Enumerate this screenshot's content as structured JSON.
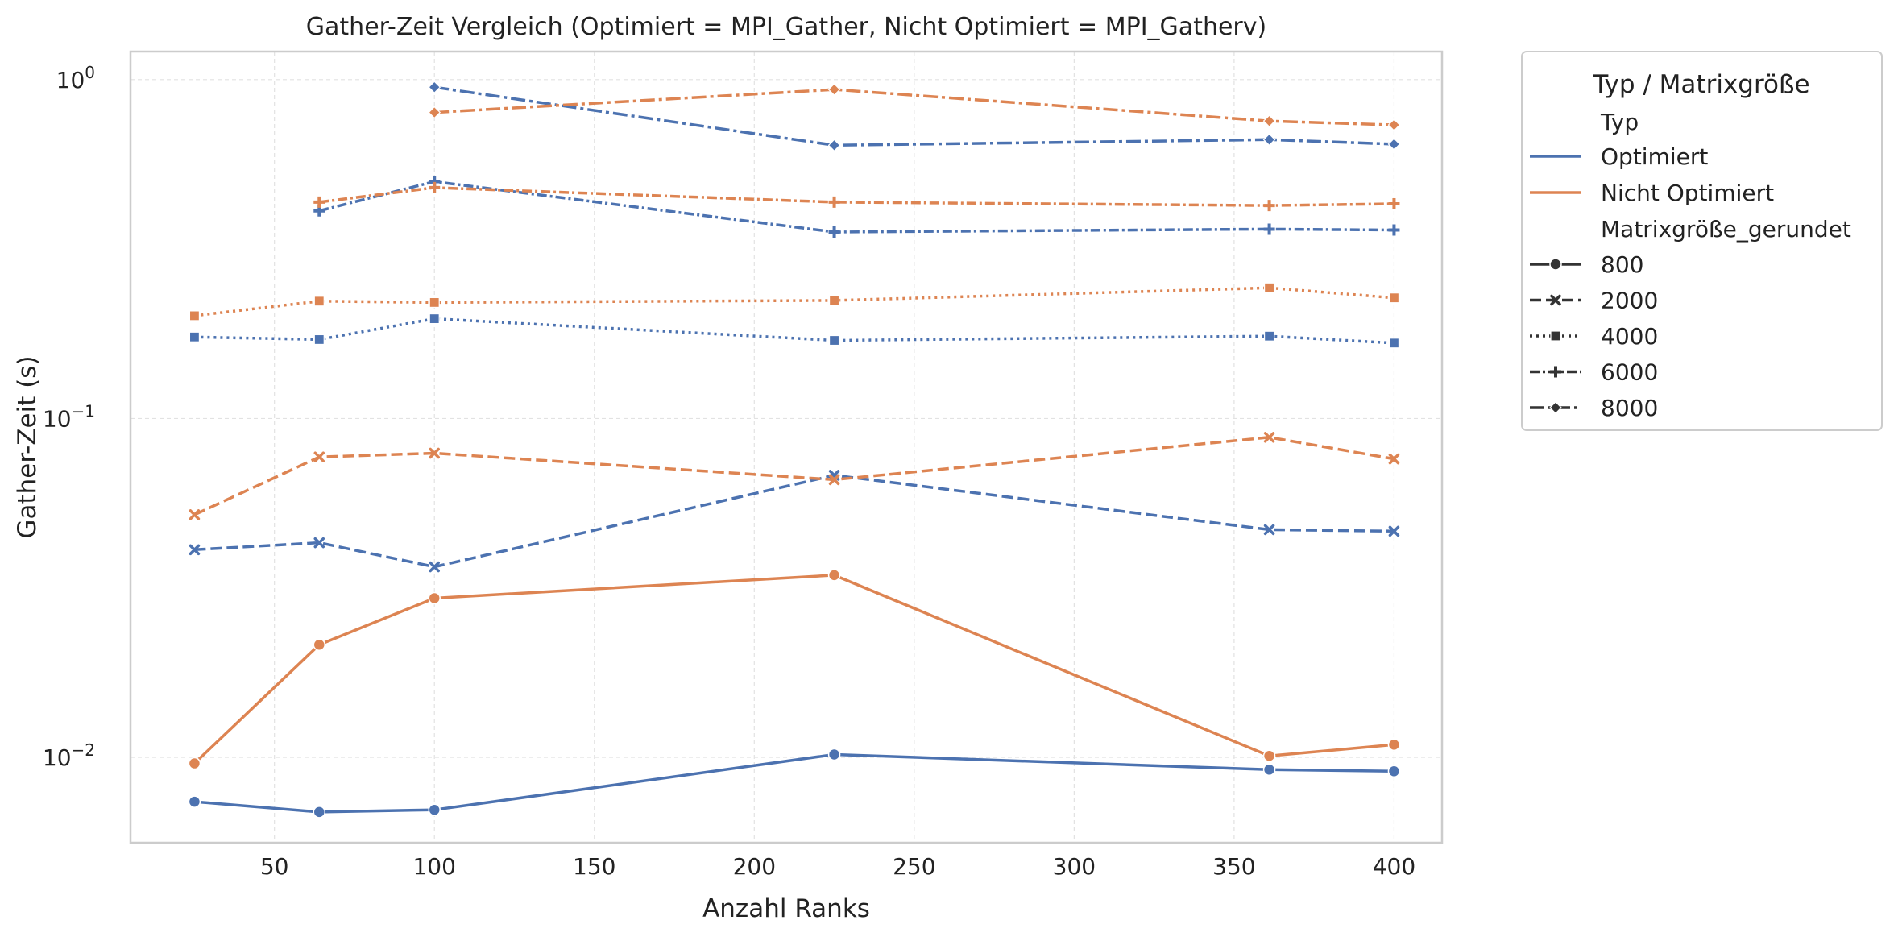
{
  "chart_data": {
    "type": "line",
    "title": "Gather-Zeit Vergleich (Optimiert = MPI_Gather, Nicht Optimiert = MPI_Gatherv)",
    "xlabel": "Anzahl Ranks",
    "ylabel": "Gather-Zeit (s)",
    "xlim": [
      5,
      415
    ],
    "ylim": [
      0.0056,
      1.21
    ],
    "yscale": "log",
    "grid": true,
    "x_ticks": [
      50,
      100,
      150,
      200,
      250,
      300,
      350,
      400
    ],
    "y_ticks": [
      {
        "value": 0.01,
        "base": "10",
        "exp": "−2"
      },
      {
        "value": 0.1,
        "base": "10",
        "exp": "−1"
      },
      {
        "value": 1,
        "base": "10",
        "exp": "0"
      }
    ],
    "legend": {
      "title": "Typ / Matrixgröße",
      "placement": "outside-right",
      "type_header": "Typ",
      "types": [
        {
          "label": "Optimiert",
          "color": "#4c72b0"
        },
        {
          "label": "Nicht Optimiert",
          "color": "#dd8452"
        }
      ],
      "size_header": "Matrixgröße_gerundet",
      "sizes": [
        {
          "label": "800",
          "marker": "circle",
          "dash": "solid"
        },
        {
          "label": "2000",
          "marker": "x",
          "dash": "dashed"
        },
        {
          "label": "4000",
          "marker": "square",
          "dash": "dotted"
        },
        {
          "label": "6000",
          "marker": "plus",
          "dash": "dashdotted"
        },
        {
          "label": "8000",
          "marker": "diamond",
          "dash": "dashdot"
        }
      ]
    },
    "series": [
      {
        "name": "Optimiert 800",
        "type": "Optimiert",
        "size": "800",
        "color": "#4c72b0",
        "marker": "circle",
        "dash": "solid",
        "x": [
          25,
          64,
          100,
          225,
          361,
          400
        ],
        "y": [
          0.0074,
          0.0069,
          0.007,
          0.0102,
          0.0092,
          0.0091
        ]
      },
      {
        "name": "Nicht Optimiert 800",
        "type": "Nicht Optimiert",
        "size": "800",
        "color": "#dd8452",
        "marker": "circle",
        "dash": "solid",
        "x": [
          25,
          64,
          100,
          225,
          361,
          400
        ],
        "y": [
          0.0096,
          0.0215,
          0.0295,
          0.0345,
          0.0101,
          0.0109
        ]
      },
      {
        "name": "Optimiert 2000",
        "type": "Optimiert",
        "size": "2000",
        "color": "#4c72b0",
        "marker": "x",
        "dash": "dashed",
        "x": [
          25,
          64,
          100,
          225,
          361,
          400
        ],
        "y": [
          0.041,
          0.043,
          0.0365,
          0.068,
          0.047,
          0.0465
        ]
      },
      {
        "name": "Nicht Optimiert 2000",
        "type": "Nicht Optimiert",
        "size": "2000",
        "color": "#dd8452",
        "marker": "x",
        "dash": "dashed",
        "x": [
          25,
          64,
          100,
          225,
          361,
          400
        ],
        "y": [
          0.052,
          0.077,
          0.079,
          0.066,
          0.088,
          0.076
        ]
      },
      {
        "name": "Optimiert 4000",
        "type": "Optimiert",
        "size": "4000",
        "color": "#4c72b0",
        "marker": "square",
        "dash": "dotted",
        "x": [
          25,
          64,
          100,
          225,
          361,
          400
        ],
        "y": [
          0.174,
          0.171,
          0.197,
          0.17,
          0.175,
          0.167
        ]
      },
      {
        "name": "Nicht Optimiert 4000",
        "type": "Nicht Optimiert",
        "size": "4000",
        "color": "#dd8452",
        "marker": "square",
        "dash": "dotted",
        "x": [
          25,
          64,
          100,
          225,
          361,
          400
        ],
        "y": [
          0.201,
          0.222,
          0.22,
          0.223,
          0.243,
          0.227
        ]
      },
      {
        "name": "Optimiert 6000",
        "type": "Optimiert",
        "size": "6000",
        "color": "#4c72b0",
        "marker": "plus",
        "dash": "dashdotted",
        "x": [
          64,
          100,
          225,
          361,
          400
        ],
        "y": [
          0.41,
          0.5,
          0.355,
          0.362,
          0.36
        ]
      },
      {
        "name": "Nicht Optimiert 6000",
        "type": "Nicht Optimiert",
        "size": "6000",
        "color": "#dd8452",
        "marker": "plus",
        "dash": "dashdotted",
        "x": [
          64,
          100,
          225,
          361,
          400
        ],
        "y": [
          0.435,
          0.48,
          0.435,
          0.425,
          0.43
        ]
      },
      {
        "name": "Optimiert 8000",
        "type": "Optimiert",
        "size": "8000",
        "color": "#4c72b0",
        "marker": "diamond",
        "dash": "dashdot",
        "x": [
          100,
          225,
          361,
          400
        ],
        "y": [
          0.95,
          0.64,
          0.665,
          0.645
        ]
      },
      {
        "name": "Nicht Optimiert 8000",
        "type": "Nicht Optimiert",
        "size": "8000",
        "color": "#dd8452",
        "marker": "diamond",
        "dash": "dashdot",
        "x": [
          100,
          225,
          361,
          400
        ],
        "y": [
          0.8,
          0.935,
          0.755,
          0.735
        ]
      }
    ]
  }
}
